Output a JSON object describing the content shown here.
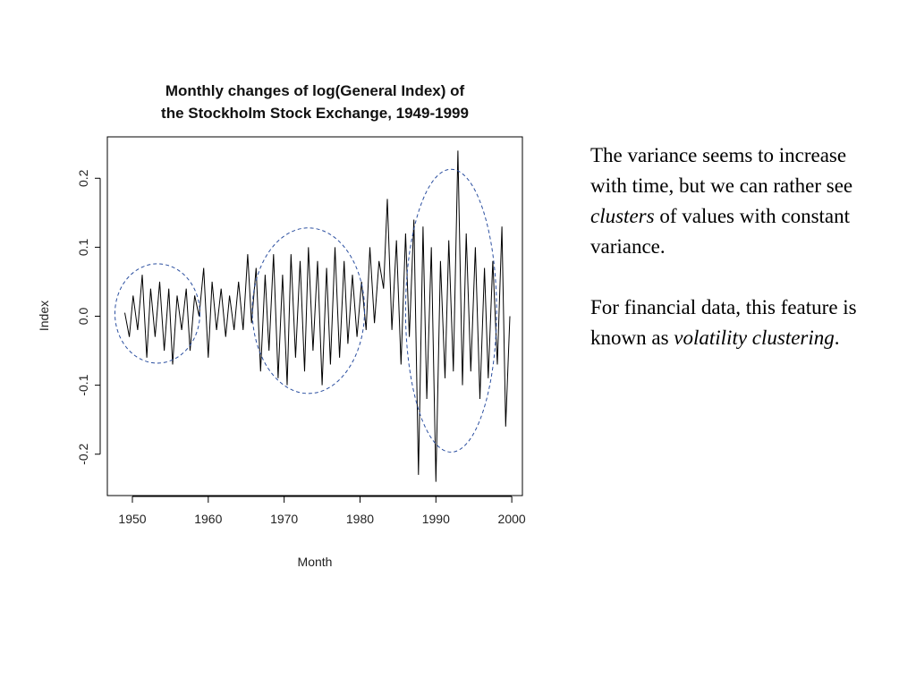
{
  "chart_data": {
    "type": "line",
    "title_lines": [
      "Monthly changes of log(General Index) of",
      "the Stockholm Stock Exchange, 1949-1999"
    ],
    "xlabel": "Month",
    "ylabel": "Index",
    "xlim": [
      1946.7,
      2001.4
    ],
    "ylim": [
      -0.26,
      0.26
    ],
    "x_ticks": [
      1950,
      1960,
      1970,
      1980,
      1990,
      2000
    ],
    "y_ticks": [
      -0.2,
      -0.1,
      0.0,
      0.1,
      0.2
    ],
    "y_tick_labels": [
      "-0.2",
      "-0.1",
      "0.0",
      "0.1",
      "0.2"
    ],
    "x_tick_labels": [
      "1950",
      "1960",
      "1970",
      "1980",
      "1990",
      "2000"
    ],
    "grid": false,
    "series_start": 1949.0,
    "series_end": 1999.75,
    "x": [
      1949.0,
      1949.6,
      1950.1,
      1950.7,
      1951.3,
      1951.9,
      1952.4,
      1953.0,
      1953.6,
      1954.2,
      1954.8,
      1955.3,
      1955.9,
      1956.5,
      1957.1,
      1957.6,
      1958.2,
      1958.8,
      1959.4,
      1960.0,
      1960.5,
      1961.1,
      1961.7,
      1962.3,
      1962.8,
      1963.4,
      1964.0,
      1964.6,
      1965.2,
      1965.7,
      1966.3,
      1966.9,
      1967.5,
      1968.0,
      1968.6,
      1969.2,
      1969.8,
      1970.4,
      1970.9,
      1971.5,
      1972.1,
      1972.7,
      1973.2,
      1973.8,
      1974.4,
      1975.0,
      1975.6,
      1976.1,
      1976.7,
      1977.3,
      1977.9,
      1978.4,
      1979.0,
      1979.6,
      1980.2,
      1980.8,
      1981.3,
      1981.9,
      1982.5,
      1983.1,
      1983.6,
      1984.2,
      1984.8,
      1985.4,
      1986.0,
      1986.5,
      1987.1,
      1987.7,
      1988.3,
      1988.8,
      1989.4,
      1990.0,
      1990.6,
      1991.2,
      1991.7,
      1992.3,
      1992.9,
      1993.5,
      1994.0,
      1994.6,
      1995.2,
      1995.8,
      1996.4,
      1996.9,
      1997.5,
      1998.1,
      1998.7,
      1999.2,
      1999.75
    ],
    "values": [
      0.005,
      -0.03,
      0.03,
      -0.02,
      0.06,
      -0.06,
      0.04,
      -0.03,
      0.05,
      -0.05,
      0.04,
      -0.07,
      0.03,
      -0.02,
      0.04,
      -0.05,
      0.03,
      0.0,
      0.07,
      -0.06,
      0.05,
      -0.02,
      0.04,
      -0.03,
      0.03,
      -0.02,
      0.05,
      -0.02,
      0.09,
      -0.01,
      0.07,
      -0.08,
      0.06,
      -0.05,
      0.09,
      -0.09,
      0.06,
      -0.1,
      0.09,
      -0.06,
      0.08,
      -0.08,
      0.1,
      -0.05,
      0.08,
      -0.1,
      0.07,
      -0.07,
      0.1,
      -0.06,
      0.08,
      -0.04,
      0.06,
      -0.03,
      0.05,
      -0.02,
      0.1,
      -0.01,
      0.08,
      0.04,
      0.17,
      -0.02,
      0.11,
      -0.07,
      0.12,
      -0.03,
      0.14,
      -0.23,
      0.13,
      -0.12,
      0.1,
      -0.24,
      0.08,
      -0.09,
      0.11,
      -0.08,
      0.24,
      -0.1,
      0.12,
      -0.08,
      0.1,
      -0.12,
      0.07,
      -0.09,
      0.08,
      -0.07,
      0.13,
      -0.16,
      0.0
    ],
    "annotations": [
      {
        "type": "dashed-ellipse",
        "x_center": 1953.3,
        "y_center": 0.004,
        "x_radius": 5.6,
        "y_radius": 0.072
      },
      {
        "type": "dashed-ellipse",
        "x_center": 1973.2,
        "y_center": 0.008,
        "x_radius": 7.4,
        "y_radius": 0.12
      },
      {
        "type": "dashed-ellipse",
        "x_center": 1992.0,
        "y_center": 0.008,
        "x_radius": 6.0,
        "y_radius": 0.205
      }
    ],
    "colors": {
      "series": "#000000",
      "axes": "#000000",
      "annotation": "#2b4fa0"
    }
  },
  "note": {
    "p1_a": "The variance seems to increase with time, but we can rather see ",
    "p1_em": "clusters",
    "p1_b": " of values with constant variance.",
    "p2_a": "For financial data, this feature is known as ",
    "p2_em": "volatility clustering",
    "p2_b": "."
  }
}
